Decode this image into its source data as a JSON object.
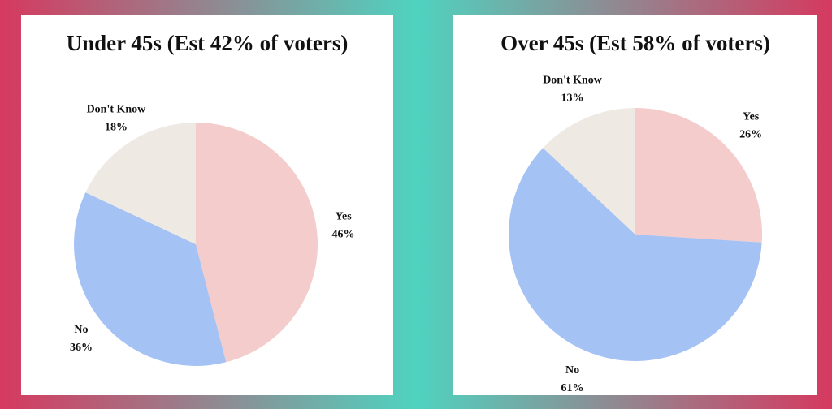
{
  "chart_data": [
    {
      "type": "pie",
      "title": "Under 45s (Est 42% of voters)",
      "categories": [
        "Yes",
        "No",
        "Don't Know"
      ],
      "values": [
        46,
        36,
        18
      ],
      "value_labels": [
        "46%",
        "36%",
        "18%"
      ],
      "colors": [
        "#f4cccc",
        "#a4c2f4",
        "#efe9e4"
      ]
    },
    {
      "type": "pie",
      "title": "Over 45s (Est 58% of voters)",
      "categories": [
        "Yes",
        "No",
        "Don't Know"
      ],
      "values": [
        26,
        61,
        13
      ],
      "value_labels": [
        "26%",
        "61%",
        "13%"
      ],
      "colors": [
        "#f4cccc",
        "#a4c2f4",
        "#efe9e4"
      ]
    }
  ]
}
